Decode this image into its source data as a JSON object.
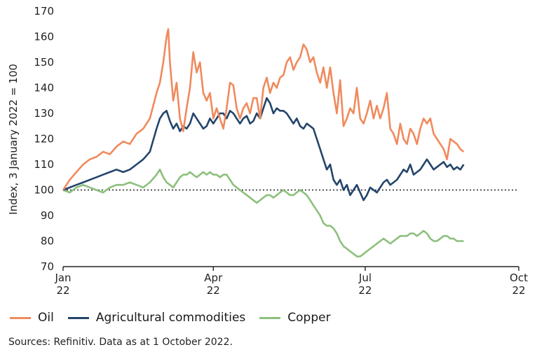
{
  "chart_data": {
    "type": "line",
    "title": "",
    "xlabel": "",
    "ylabel": "Index, 3 January 2022 = 100",
    "ylim": [
      70,
      170
    ],
    "yticks": [
      70,
      80,
      90,
      100,
      110,
      120,
      130,
      140,
      150,
      160,
      170
    ],
    "xlim": [
      0,
      273
    ],
    "xticks": [
      {
        "x": 0,
        "month": "Jan",
        "year": "22"
      },
      {
        "x": 90,
        "month": "Apr",
        "year": "22"
      },
      {
        "x": 181,
        "month": "Jul",
        "year": "22"
      },
      {
        "x": 273,
        "month": "Oct",
        "year": "22"
      }
    ],
    "reference_line": 100,
    "series": [
      {
        "name": "Oil",
        "color": "#f08a5d",
        "points": [
          [
            0,
            100
          ],
          [
            4,
            104
          ],
          [
            8,
            107
          ],
          [
            12,
            110
          ],
          [
            16,
            112
          ],
          [
            20,
            113
          ],
          [
            24,
            115
          ],
          [
            28,
            114
          ],
          [
            32,
            117
          ],
          [
            36,
            119
          ],
          [
            40,
            118
          ],
          [
            44,
            122
          ],
          [
            48,
            124
          ],
          [
            52,
            128
          ],
          [
            56,
            138
          ],
          [
            58,
            142
          ],
          [
            60,
            150
          ],
          [
            62,
            160
          ],
          [
            63,
            163
          ],
          [
            64,
            150
          ],
          [
            66,
            135
          ],
          [
            68,
            142
          ],
          [
            70,
            128
          ],
          [
            72,
            123
          ],
          [
            74,
            132
          ],
          [
            76,
            140
          ],
          [
            78,
            154
          ],
          [
            80,
            146
          ],
          [
            82,
            150
          ],
          [
            84,
            138
          ],
          [
            86,
            135
          ],
          [
            88,
            138
          ],
          [
            90,
            128
          ],
          [
            92,
            132
          ],
          [
            94,
            128
          ],
          [
            96,
            124
          ],
          [
            98,
            132
          ],
          [
            100,
            142
          ],
          [
            102,
            141
          ],
          [
            104,
            132
          ],
          [
            106,
            128
          ],
          [
            108,
            132
          ],
          [
            110,
            134
          ],
          [
            112,
            130
          ],
          [
            114,
            136
          ],
          [
            116,
            136
          ],
          [
            118,
            128
          ],
          [
            120,
            140
          ],
          [
            122,
            144
          ],
          [
            124,
            138
          ],
          [
            126,
            142
          ],
          [
            128,
            140
          ],
          [
            130,
            144
          ],
          [
            132,
            145
          ],
          [
            134,
            150
          ],
          [
            136,
            152
          ],
          [
            138,
            147
          ],
          [
            140,
            150
          ],
          [
            142,
            152
          ],
          [
            144,
            157
          ],
          [
            146,
            155
          ],
          [
            148,
            150
          ],
          [
            150,
            152
          ],
          [
            152,
            146
          ],
          [
            154,
            142
          ],
          [
            156,
            148
          ],
          [
            158,
            140
          ],
          [
            160,
            148
          ],
          [
            162,
            138
          ],
          [
            164,
            130
          ],
          [
            166,
            143
          ],
          [
            168,
            125
          ],
          [
            170,
            128
          ],
          [
            172,
            132
          ],
          [
            174,
            130
          ],
          [
            176,
            140
          ],
          [
            178,
            128
          ],
          [
            180,
            126
          ],
          [
            182,
            130
          ],
          [
            184,
            135
          ],
          [
            186,
            128
          ],
          [
            188,
            133
          ],
          [
            190,
            128
          ],
          [
            192,
            132
          ],
          [
            194,
            138
          ],
          [
            196,
            124
          ],
          [
            198,
            122
          ],
          [
            200,
            118
          ],
          [
            202,
            126
          ],
          [
            204,
            120
          ],
          [
            206,
            118
          ],
          [
            208,
            124
          ],
          [
            210,
            122
          ],
          [
            212,
            118
          ],
          [
            214,
            124
          ],
          [
            216,
            128
          ],
          [
            218,
            126
          ],
          [
            220,
            128
          ],
          [
            222,
            122
          ],
          [
            224,
            120
          ],
          [
            226,
            118
          ],
          [
            228,
            116
          ],
          [
            230,
            112
          ],
          [
            232,
            120
          ],
          [
            234,
            119
          ],
          [
            236,
            118
          ],
          [
            238,
            116
          ],
          [
            240,
            115
          ]
        ]
      },
      {
        "name": "Agricultural commodities",
        "color": "#24456a",
        "points": [
          [
            0,
            100
          ],
          [
            4,
            101
          ],
          [
            8,
            102
          ],
          [
            12,
            103
          ],
          [
            16,
            104
          ],
          [
            20,
            105
          ],
          [
            24,
            106
          ],
          [
            28,
            107
          ],
          [
            32,
            108
          ],
          [
            36,
            107
          ],
          [
            40,
            108
          ],
          [
            44,
            110
          ],
          [
            48,
            112
          ],
          [
            52,
            115
          ],
          [
            56,
            124
          ],
          [
            58,
            128
          ],
          [
            60,
            130
          ],
          [
            62,
            131
          ],
          [
            64,
            127
          ],
          [
            66,
            124
          ],
          [
            68,
            126
          ],
          [
            70,
            123
          ],
          [
            72,
            125
          ],
          [
            74,
            124
          ],
          [
            76,
            126
          ],
          [
            78,
            130
          ],
          [
            80,
            128
          ],
          [
            82,
            126
          ],
          [
            84,
            124
          ],
          [
            86,
            125
          ],
          [
            88,
            128
          ],
          [
            90,
            126
          ],
          [
            92,
            128
          ],
          [
            94,
            130
          ],
          [
            96,
            130
          ],
          [
            98,
            128
          ],
          [
            100,
            131
          ],
          [
            102,
            130
          ],
          [
            104,
            128
          ],
          [
            106,
            126
          ],
          [
            108,
            128
          ],
          [
            110,
            129
          ],
          [
            112,
            126
          ],
          [
            114,
            127
          ],
          [
            116,
            130
          ],
          [
            118,
            128
          ],
          [
            120,
            132
          ],
          [
            122,
            136
          ],
          [
            124,
            134
          ],
          [
            126,
            130
          ],
          [
            128,
            132
          ],
          [
            130,
            131
          ],
          [
            132,
            131
          ],
          [
            134,
            130
          ],
          [
            136,
            128
          ],
          [
            138,
            126
          ],
          [
            140,
            128
          ],
          [
            142,
            125
          ],
          [
            144,
            124
          ],
          [
            146,
            126
          ],
          [
            148,
            125
          ],
          [
            150,
            124
          ],
          [
            152,
            120
          ],
          [
            154,
            116
          ],
          [
            156,
            112
          ],
          [
            158,
            108
          ],
          [
            160,
            110
          ],
          [
            162,
            104
          ],
          [
            164,
            102
          ],
          [
            166,
            104
          ],
          [
            168,
            100
          ],
          [
            170,
            102
          ],
          [
            172,
            98
          ],
          [
            174,
            100
          ],
          [
            176,
            102
          ],
          [
            178,
            99
          ],
          [
            180,
            96
          ],
          [
            182,
            98
          ],
          [
            184,
            101
          ],
          [
            186,
            100
          ],
          [
            188,
            99
          ],
          [
            190,
            101
          ],
          [
            192,
            103
          ],
          [
            194,
            104
          ],
          [
            196,
            102
          ],
          [
            198,
            103
          ],
          [
            200,
            104
          ],
          [
            202,
            106
          ],
          [
            204,
            108
          ],
          [
            206,
            107
          ],
          [
            208,
            110
          ],
          [
            210,
            106
          ],
          [
            212,
            107
          ],
          [
            214,
            108
          ],
          [
            216,
            110
          ],
          [
            218,
            112
          ],
          [
            220,
            110
          ],
          [
            222,
            108
          ],
          [
            224,
            109
          ],
          [
            226,
            110
          ],
          [
            228,
            111
          ],
          [
            230,
            109
          ],
          [
            232,
            110
          ],
          [
            234,
            108
          ],
          [
            236,
            109
          ],
          [
            238,
            108
          ],
          [
            240,
            110
          ]
        ]
      },
      {
        "name": "Copper",
        "color": "#8cc07c",
        "points": [
          [
            0,
            100
          ],
          [
            4,
            99
          ],
          [
            8,
            101
          ],
          [
            12,
            102
          ],
          [
            16,
            101
          ],
          [
            20,
            100
          ],
          [
            24,
            99
          ],
          [
            28,
            101
          ],
          [
            32,
            102
          ],
          [
            36,
            102
          ],
          [
            40,
            103
          ],
          [
            44,
            102
          ],
          [
            48,
            101
          ],
          [
            52,
            103
          ],
          [
            56,
            106
          ],
          [
            58,
            108
          ],
          [
            60,
            105
          ],
          [
            62,
            103
          ],
          [
            64,
            102
          ],
          [
            66,
            101
          ],
          [
            68,
            103
          ],
          [
            70,
            105
          ],
          [
            72,
            106
          ],
          [
            74,
            106
          ],
          [
            76,
            107
          ],
          [
            78,
            106
          ],
          [
            80,
            105
          ],
          [
            82,
            106
          ],
          [
            84,
            107
          ],
          [
            86,
            106
          ],
          [
            88,
            107
          ],
          [
            90,
            106
          ],
          [
            92,
            106
          ],
          [
            94,
            105
          ],
          [
            96,
            106
          ],
          [
            98,
            106
          ],
          [
            100,
            104
          ],
          [
            102,
            102
          ],
          [
            104,
            101
          ],
          [
            106,
            100
          ],
          [
            108,
            99
          ],
          [
            110,
            98
          ],
          [
            112,
            97
          ],
          [
            114,
            96
          ],
          [
            116,
            95
          ],
          [
            118,
            96
          ],
          [
            120,
            97
          ],
          [
            122,
            98
          ],
          [
            124,
            98
          ],
          [
            126,
            97
          ],
          [
            128,
            98
          ],
          [
            130,
            99
          ],
          [
            132,
            100
          ],
          [
            134,
            99
          ],
          [
            136,
            98
          ],
          [
            138,
            98
          ],
          [
            140,
            99
          ],
          [
            142,
            100
          ],
          [
            144,
            99
          ],
          [
            146,
            98
          ],
          [
            148,
            96
          ],
          [
            150,
            94
          ],
          [
            152,
            92
          ],
          [
            154,
            90
          ],
          [
            156,
            87
          ],
          [
            158,
            86
          ],
          [
            160,
            86
          ],
          [
            162,
            85
          ],
          [
            164,
            83
          ],
          [
            166,
            80
          ],
          [
            168,
            78
          ],
          [
            170,
            77
          ],
          [
            172,
            76
          ],
          [
            174,
            75
          ],
          [
            176,
            74
          ],
          [
            178,
            74
          ],
          [
            180,
            75
          ],
          [
            182,
            76
          ],
          [
            184,
            77
          ],
          [
            186,
            78
          ],
          [
            188,
            79
          ],
          [
            190,
            80
          ],
          [
            192,
            81
          ],
          [
            194,
            80
          ],
          [
            196,
            79
          ],
          [
            198,
            80
          ],
          [
            200,
            81
          ],
          [
            202,
            82
          ],
          [
            204,
            82
          ],
          [
            206,
            82
          ],
          [
            208,
            83
          ],
          [
            210,
            83
          ],
          [
            212,
            82
          ],
          [
            214,
            83
          ],
          [
            216,
            84
          ],
          [
            218,
            83
          ],
          [
            220,
            81
          ],
          [
            222,
            80
          ],
          [
            224,
            80
          ],
          [
            226,
            81
          ],
          [
            228,
            82
          ],
          [
            230,
            82
          ],
          [
            232,
            81
          ],
          [
            234,
            81
          ],
          [
            236,
            80
          ],
          [
            238,
            80
          ],
          [
            240,
            80
          ]
        ]
      }
    ]
  },
  "legend": [
    {
      "label": "Oil",
      "color": "#f08a5d"
    },
    {
      "label": "Agricultural commodities",
      "color": "#24456a"
    },
    {
      "label": "Copper",
      "color": "#8cc07c"
    }
  ],
  "source": "Sources: Refinitiv. Data as at 1 October 2022."
}
